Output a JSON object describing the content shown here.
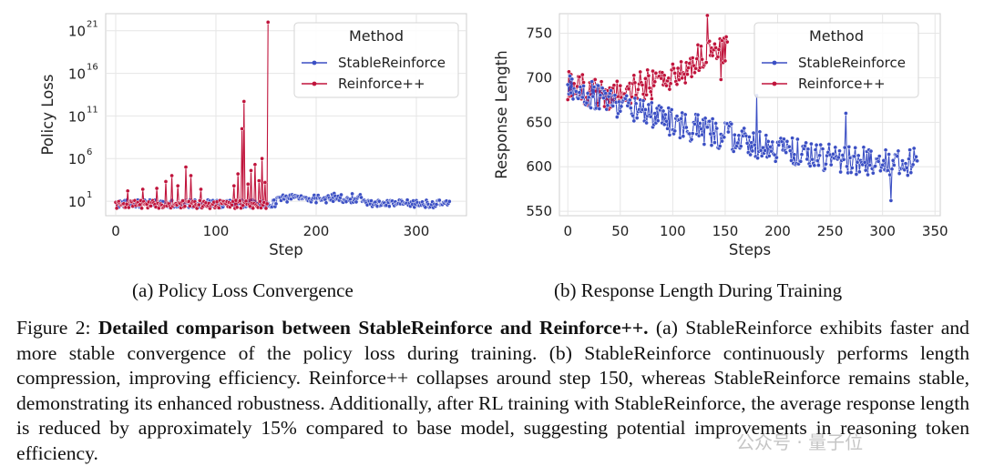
{
  "charts": [
    {
      "id": "a",
      "type": "line",
      "xlabel": "Step",
      "ylabel": "Policy Loss",
      "ylog": true,
      "xlim": [
        -10,
        350
      ],
      "ylim_log10": [
        -0.7,
        23
      ],
      "xticks": [
        0,
        100,
        200,
        300
      ],
      "yticks": [
        {
          "exp": 1,
          "label": "10",
          "sup": "1"
        },
        {
          "exp": 6,
          "label": "10",
          "sup": "6"
        },
        {
          "exp": 11,
          "label": "10",
          "sup": "11"
        },
        {
          "exp": 16,
          "label": "10",
          "sup": "16"
        },
        {
          "exp": 21,
          "label": "10",
          "sup": "21"
        }
      ],
      "legend": {
        "title": "Method",
        "position": "top-right"
      },
      "series": [
        {
          "name": "StableReinforce",
          "color": "#3b4fc4",
          "x_start": 0,
          "x_end": 333,
          "note": "log10 loss fluctuates ~0-2 for all steps"
        },
        {
          "name": "Reinforce++",
          "color": "#c0143c",
          "x_start": 0,
          "x_end": 152,
          "note": "log10 loss ~0-2 with spikes; major spikes near 56(4), 70(5), 75(4), 126(9.5), 128(12.7), 139(5.3), 146(6), 152(22)"
        }
      ],
      "caption": "(a)  Policy Loss Convergence"
    },
    {
      "id": "b",
      "type": "line",
      "xlabel": "Steps",
      "ylabel": "Response Length",
      "xlim": [
        -8,
        355
      ],
      "ylim": [
        545,
        772
      ],
      "xticks": [
        0,
        50,
        100,
        150,
        200,
        250,
        300,
        350
      ],
      "yticks": [
        550,
        600,
        650,
        700,
        750
      ],
      "legend": {
        "title": "Method",
        "position": "top-right"
      },
      "series": [
        {
          "name": "StableReinforce",
          "color": "#3b4fc4",
          "x_start": 0,
          "x_end": 333,
          "trend": [
            [
              0,
              690
            ],
            [
              50,
              670
            ],
            [
              100,
              650
            ],
            [
              150,
              635
            ],
            [
              200,
              620
            ],
            [
              250,
              610
            ],
            [
              300,
              605
            ],
            [
              333,
              605
            ]
          ],
          "noise": 16
        },
        {
          "name": "Reinforce++",
          "color": "#c0143c",
          "x_start": 0,
          "x_end": 152,
          "trend": [
            [
              0,
              690
            ],
            [
              40,
              680
            ],
            [
              70,
              690
            ],
            [
              100,
              700
            ],
            [
              130,
              725
            ],
            [
              152,
              730
            ]
          ],
          "noise": 17
        }
      ],
      "caption": "(b)  Response Length During Training"
    }
  ],
  "figure_caption": {
    "prefix": "Figure 2: ",
    "bold": "Detailed comparison between StableReinforce and Reinforce++.",
    "text": " (a) StableReinforce exhibits faster and more stable convergence of the policy loss during training. (b) StableReinforce continuously performs length compression, improving efficiency. Reinforce++ collapses around step 150, whereas StableReinforce remains stable, demonstrating its enhanced robustness. Additionally, after RL training with StableReinforce, the average response length is reduced by approximately 15% compared to base model, suggesting potential improvements in reasoning token efficiency."
  },
  "watermark": "公众号 · 量子位"
}
